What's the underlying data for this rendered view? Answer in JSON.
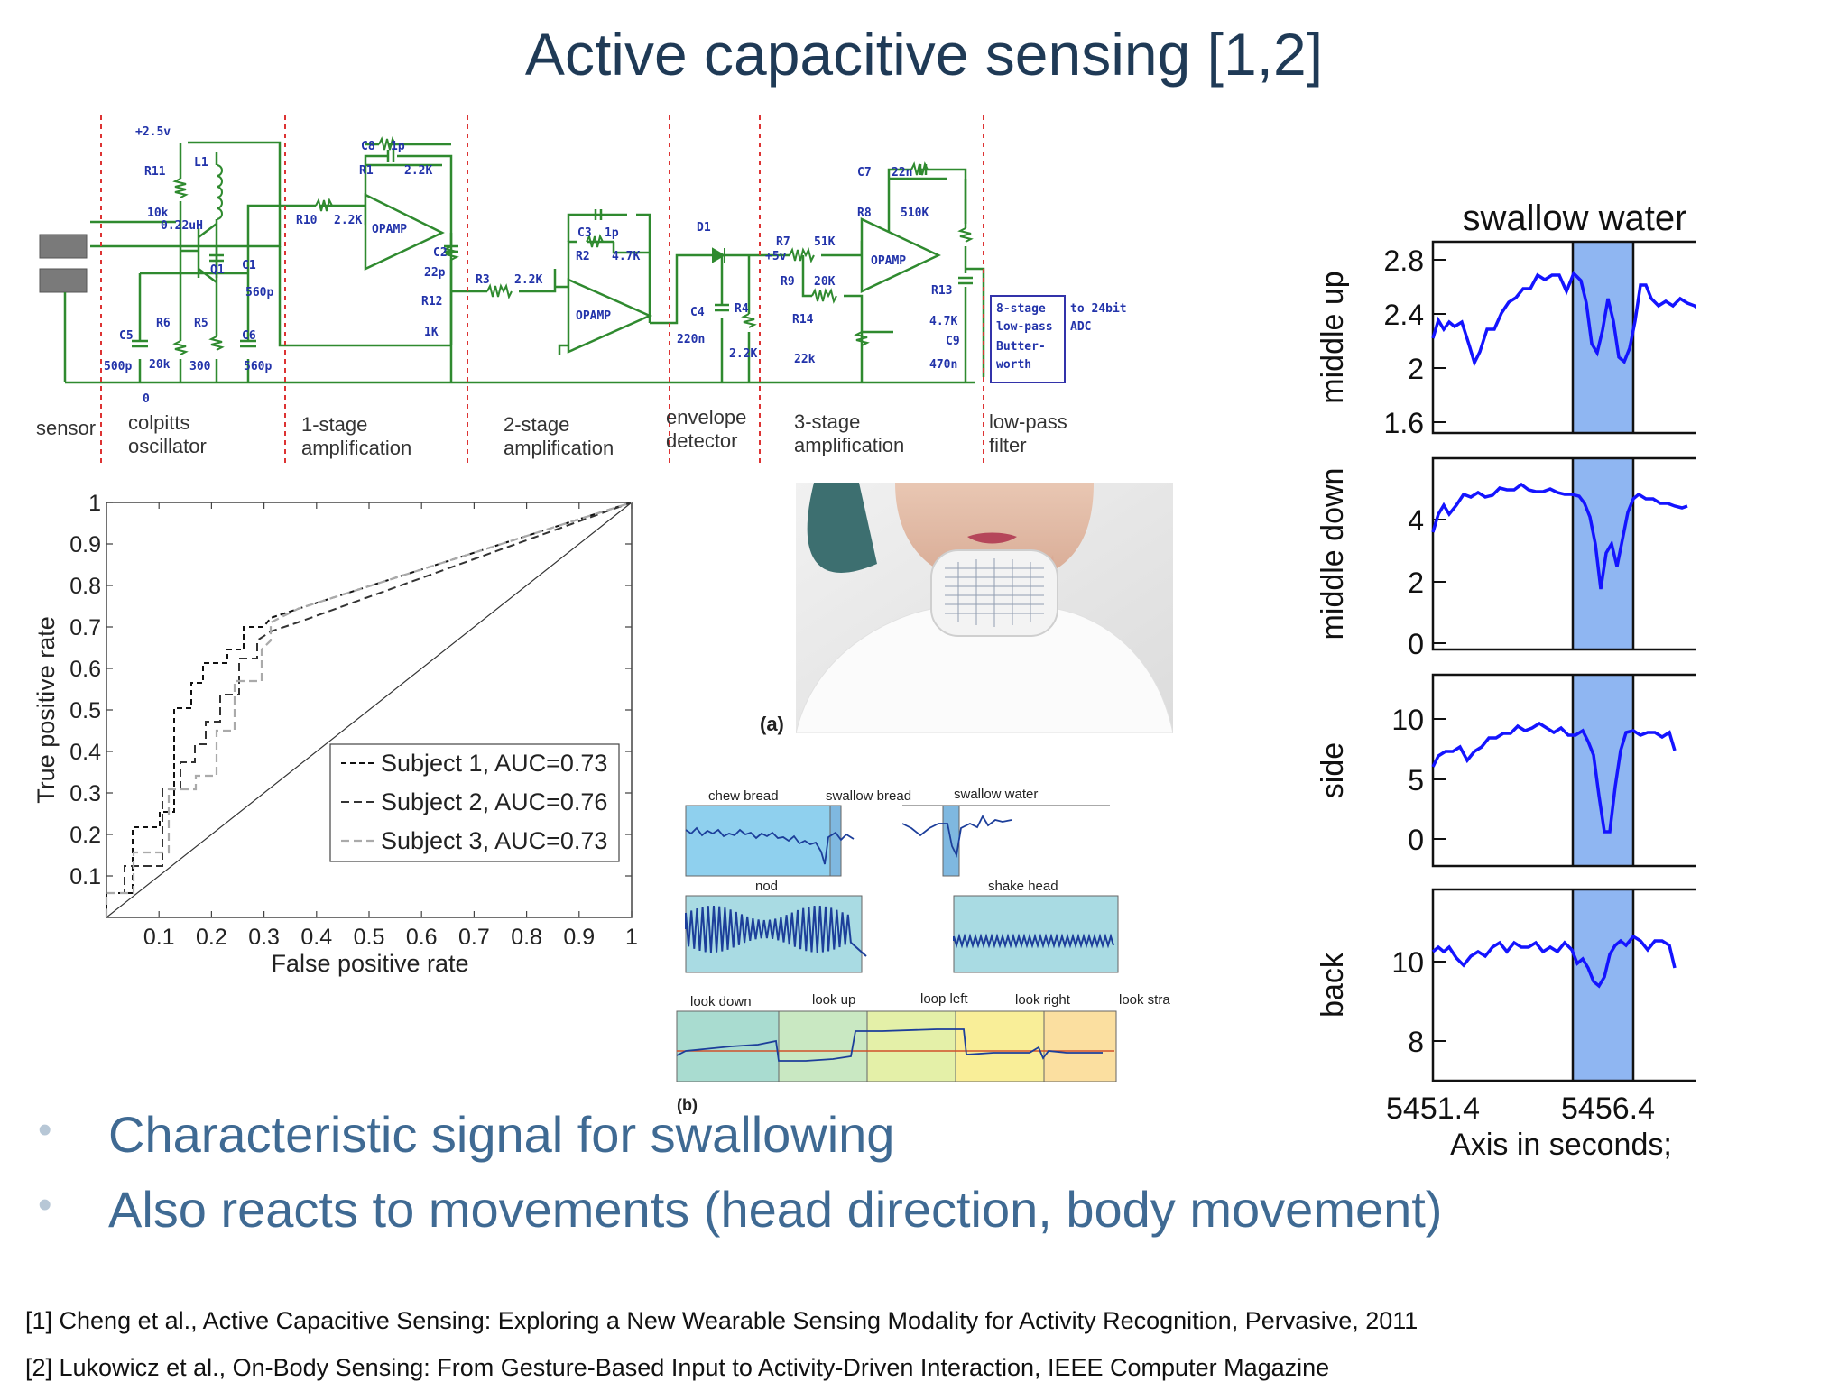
{
  "title": "Active capacitive sensing [1,2]",
  "circuit": {
    "stages": [
      "sensor",
      "colpitts\noscillator",
      "1-stage\namplification",
      "2-stage\namplification",
      "envelope\ndetector",
      "3-stage\namplification",
      "low-pass\nfilter"
    ],
    "labels": {
      "vcc": "+2.5v",
      "r11": "R11",
      "l1": "L1",
      "r11v": "10k",
      "l1v": "0.22uH",
      "q1": "Q1",
      "c1": "C1",
      "c1v": "560p",
      "r6": "R6",
      "r5": "R5",
      "c6": "C6",
      "c5": "C5",
      "c5v": "500p",
      "r6v": "20k",
      "r5v": "300",
      "c6v": "560p",
      "gnd": "0",
      "c8": "C8",
      "c8v": "1p",
      "r1": "R1",
      "r1v": "2.2K",
      "r10": "R10",
      "r10v": "2.2K",
      "opamp": "OPAMP",
      "c2": "C2",
      "c2v": "22p",
      "r12": "R12",
      "r12v": "1K",
      "r3": "R3",
      "r3v": "2.2K",
      "c3": "C3",
      "c3v": "1p",
      "r2": "R2",
      "r2v": "4.7K",
      "d1": "D1",
      "c4": "C4",
      "c4v": "220n",
      "r4": "R4",
      "r4v": "2.2K",
      "r7": "R7",
      "r7v": "51K",
      "p5v": "+5v",
      "r9": "R9",
      "r9v": "20K",
      "r14": "R14",
      "r14v": "22k",
      "c7": "C7",
      "c7v": "22n",
      "r8": "R8",
      "r8v": "510K",
      "r13": "R13",
      "r13v": "4.7K",
      "c9": "C9",
      "c9v": "470n",
      "filter1": "8-stage",
      "filter2": "low-pass",
      "filter3": "Butter-",
      "filter4": "worth",
      "adc1": "to 24bit",
      "adc2": "ADC"
    }
  },
  "roc": {
    "xlabel": "False positive rate",
    "ylabel": "True positive rate",
    "xticks": [
      "0.1",
      "0.2",
      "0.3",
      "0.4",
      "0.5",
      "0.6",
      "0.7",
      "0.8",
      "0.9",
      "1"
    ],
    "yticks": [
      "0.1",
      "0.2",
      "0.3",
      "0.4",
      "0.5",
      "0.6",
      "0.7",
      "0.8",
      "0.9",
      "1"
    ],
    "legend": [
      "Subject 1, AUC=0.73",
      "Subject 2, AUC=0.76",
      "Subject 3, AUC=0.73"
    ]
  },
  "photo_label": "(a)",
  "panel_b": {
    "label": "(b)",
    "row1": [
      "chew bread",
      "swallow bread",
      "swallow water"
    ],
    "row2": [
      "nod",
      "shake head"
    ],
    "row3": [
      "look down",
      "look up",
      "loop left",
      "look right",
      "look stra"
    ]
  },
  "swallow": {
    "title": "swallow water",
    "xlabel": "Axis in seconds;",
    "xticks": [
      "5451.4",
      "5456.4"
    ],
    "panels": [
      {
        "ylabel": "middle up",
        "yticks": [
          "2.8",
          "2.4",
          "2",
          "1.6"
        ]
      },
      {
        "ylabel": "middle down",
        "yticks": [
          "4",
          "2",
          "0"
        ]
      },
      {
        "ylabel": "side",
        "yticks": [
          "10",
          "5",
          "0"
        ]
      },
      {
        "ylabel": "back",
        "yticks": [
          "10",
          "8"
        ]
      }
    ]
  },
  "bullets": [
    "Characteristic signal for swallowing",
    "Also reacts to movements (head direction, body movement)"
  ],
  "references": [
    "[1] Cheng et al., Active Capacitive Sensing: Exploring a New Wearable Sensing Modality for Activity Recognition, Pervasive, 2011",
    "[2] Lukowicz et al., On-Body Sensing: From Gesture-Based Input to Activity-Driven Interaction, IEEE Computer Magazine"
  ]
}
